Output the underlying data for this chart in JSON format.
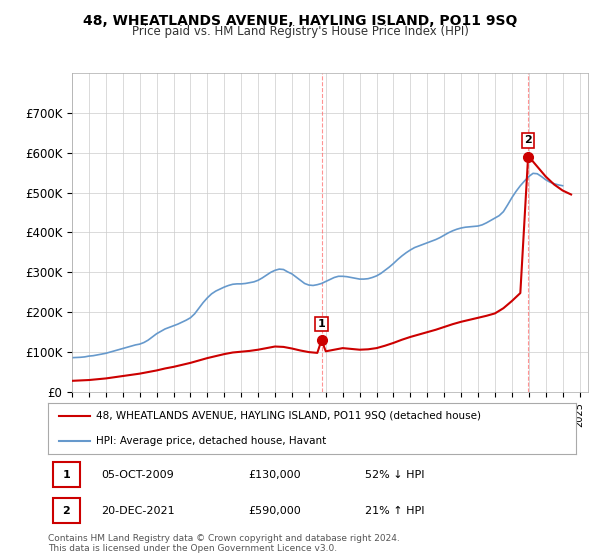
{
  "title": "48, WHEATLANDS AVENUE, HAYLING ISLAND, PO11 9SQ",
  "subtitle": "Price paid vs. HM Land Registry's House Price Index (HPI)",
  "legend_line1": "48, WHEATLANDS AVENUE, HAYLING ISLAND, PO11 9SQ (detached house)",
  "legend_line2": "HPI: Average price, detached house, Havant",
  "sale1_label": "1",
  "sale1_date": "05-OCT-2009",
  "sale1_price": "£130,000",
  "sale1_hpi": "52% ↓ HPI",
  "sale2_label": "2",
  "sale2_date": "20-DEC-2021",
  "sale2_price": "£590,000",
  "sale2_hpi": "21% ↑ HPI",
  "footer": "Contains HM Land Registry data © Crown copyright and database right 2024.\nThis data is licensed under the Open Government Licence v3.0.",
  "red_color": "#cc0000",
  "blue_color": "#6699cc",
  "grid_color": "#cccccc",
  "background_color": "#ffffff",
  "ylim": [
    0,
    800000
  ],
  "yticks": [
    0,
    100000,
    200000,
    300000,
    400000,
    500000,
    600000,
    700000
  ],
  "ytick_labels": [
    "£0",
    "£100K",
    "£200K",
    "£300K",
    "£400K",
    "£500K",
    "£600K",
    "£700K"
  ],
  "xmin": 1995.0,
  "xmax": 2025.5,
  "xticks": [
    1995,
    1996,
    1997,
    1998,
    1999,
    2000,
    2001,
    2002,
    2003,
    2004,
    2005,
    2006,
    2007,
    2008,
    2009,
    2010,
    2011,
    2012,
    2013,
    2014,
    2015,
    2016,
    2017,
    2018,
    2019,
    2020,
    2021,
    2022,
    2023,
    2024,
    2025
  ],
  "sale1_x": 2009.75,
  "sale1_y": 130000,
  "sale2_x": 2021.96,
  "sale2_y": 590000,
  "vline1_x": 2009.75,
  "vline2_x": 2021.96,
  "hpi_x": [
    1995.0,
    1995.25,
    1995.5,
    1995.75,
    1996.0,
    1996.25,
    1996.5,
    1996.75,
    1997.0,
    1997.25,
    1997.5,
    1997.75,
    1998.0,
    1998.25,
    1998.5,
    1998.75,
    1999.0,
    1999.25,
    1999.5,
    1999.75,
    2000.0,
    2000.25,
    2000.5,
    2000.75,
    2001.0,
    2001.25,
    2001.5,
    2001.75,
    2002.0,
    2002.25,
    2002.5,
    2002.75,
    2003.0,
    2003.25,
    2003.5,
    2003.75,
    2004.0,
    2004.25,
    2004.5,
    2004.75,
    2005.0,
    2005.25,
    2005.5,
    2005.75,
    2006.0,
    2006.25,
    2006.5,
    2006.75,
    2007.0,
    2007.25,
    2007.5,
    2007.75,
    2008.0,
    2008.25,
    2008.5,
    2008.75,
    2009.0,
    2009.25,
    2009.5,
    2009.75,
    2010.0,
    2010.25,
    2010.5,
    2010.75,
    2011.0,
    2011.25,
    2011.5,
    2011.75,
    2012.0,
    2012.25,
    2012.5,
    2012.75,
    2013.0,
    2013.25,
    2013.5,
    2013.75,
    2014.0,
    2014.25,
    2014.5,
    2014.75,
    2015.0,
    2015.25,
    2015.5,
    2015.75,
    2016.0,
    2016.25,
    2016.5,
    2016.75,
    2017.0,
    2017.25,
    2017.5,
    2017.75,
    2018.0,
    2018.25,
    2018.5,
    2018.75,
    2019.0,
    2019.25,
    2019.5,
    2019.75,
    2020.0,
    2020.25,
    2020.5,
    2020.75,
    2021.0,
    2021.25,
    2021.5,
    2021.75,
    2022.0,
    2022.25,
    2022.5,
    2022.75,
    2023.0,
    2023.25,
    2023.5,
    2023.75,
    2024.0
  ],
  "hpi_y": [
    86000,
    86500,
    87000,
    88000,
    90000,
    91000,
    93000,
    95000,
    97000,
    100000,
    103000,
    106000,
    109000,
    112000,
    115000,
    118000,
    120000,
    124000,
    130000,
    138000,
    146000,
    152000,
    158000,
    162000,
    166000,
    170000,
    175000,
    180000,
    186000,
    196000,
    210000,
    224000,
    236000,
    246000,
    253000,
    258000,
    263000,
    267000,
    270000,
    271000,
    271000,
    272000,
    274000,
    276000,
    280000,
    286000,
    293000,
    300000,
    305000,
    308000,
    307000,
    301000,
    296000,
    288000,
    280000,
    272000,
    268000,
    267000,
    269000,
    272000,
    277000,
    282000,
    287000,
    290000,
    290000,
    289000,
    287000,
    285000,
    283000,
    283000,
    284000,
    287000,
    291000,
    297000,
    305000,
    313000,
    322000,
    332000,
    341000,
    349000,
    356000,
    362000,
    366000,
    370000,
    374000,
    378000,
    382000,
    387000,
    393000,
    399000,
    404000,
    408000,
    411000,
    413000,
    414000,
    415000,
    416000,
    419000,
    424000,
    430000,
    436000,
    442000,
    452000,
    469000,
    487000,
    503000,
    517000,
    529000,
    540000,
    548000,
    547000,
    540000,
    532000,
    526000,
    522000,
    519000,
    517000
  ],
  "red_x": [
    1995.0,
    1995.5,
    1996.0,
    1996.5,
    1997.0,
    1997.5,
    1998.0,
    1998.5,
    1999.0,
    1999.5,
    2000.0,
    2000.5,
    2001.0,
    2001.5,
    2002.0,
    2002.5,
    2003.0,
    2003.5,
    2004.0,
    2004.5,
    2005.0,
    2005.5,
    2006.0,
    2006.5,
    2007.0,
    2007.5,
    2008.0,
    2008.5,
    2009.0,
    2009.5,
    2009.75,
    2010.0,
    2010.5,
    2011.0,
    2011.5,
    2012.0,
    2012.5,
    2013.0,
    2013.5,
    2014.0,
    2014.5,
    2015.0,
    2015.5,
    2016.0,
    2016.5,
    2017.0,
    2017.5,
    2018.0,
    2018.5,
    2019.0,
    2019.5,
    2020.0,
    2020.5,
    2021.0,
    2021.5,
    2021.96,
    2022.0,
    2022.5,
    2023.0,
    2023.5,
    2024.0,
    2024.5
  ],
  "red_y": [
    28000,
    29000,
    30000,
    32000,
    34000,
    37000,
    40000,
    43000,
    46000,
    50000,
    54000,
    59000,
    63000,
    68000,
    73000,
    79000,
    85000,
    90000,
    95000,
    99000,
    101000,
    103000,
    106000,
    110000,
    114000,
    113000,
    109000,
    104000,
    100000,
    98000,
    130000,
    102000,
    106000,
    110000,
    108000,
    106000,
    107000,
    110000,
    116000,
    123000,
    131000,
    138000,
    144000,
    150000,
    156000,
    163000,
    170000,
    176000,
    181000,
    186000,
    191000,
    197000,
    210000,
    228000,
    248000,
    590000,
    590000,
    565000,
    540000,
    520000,
    505000,
    495000
  ]
}
